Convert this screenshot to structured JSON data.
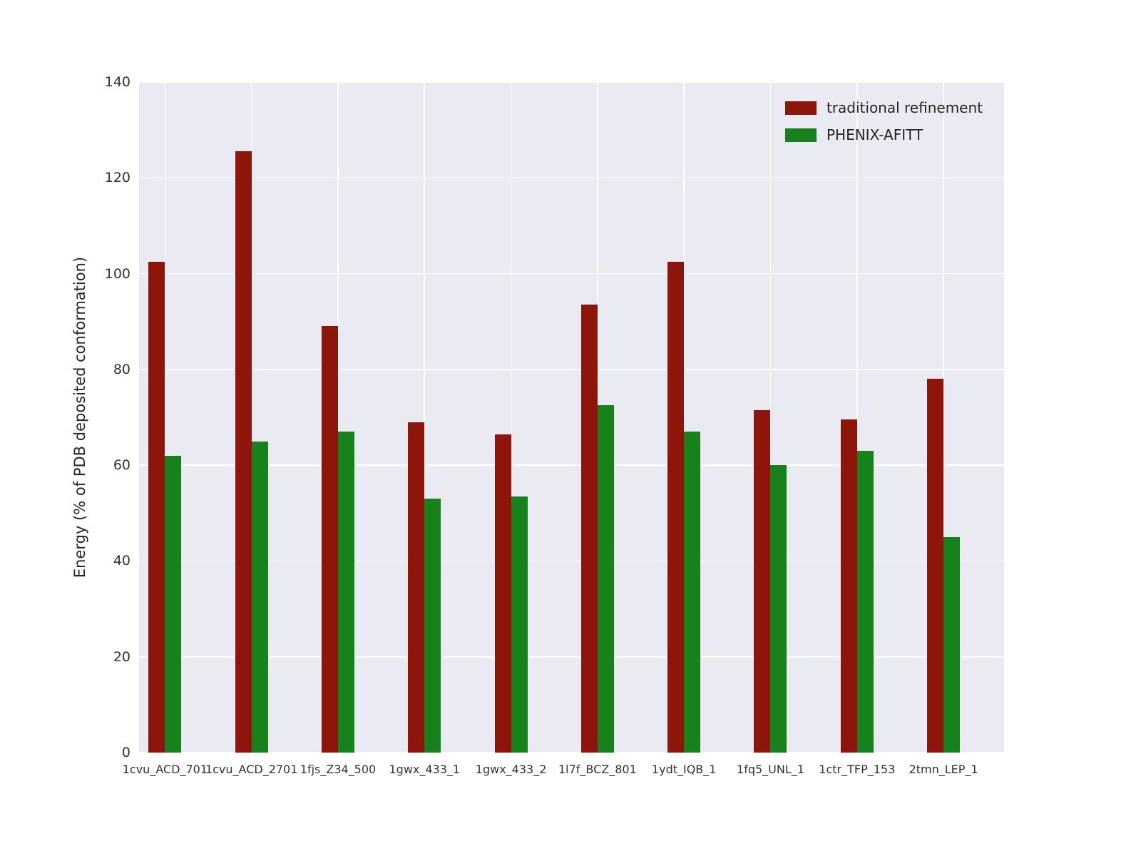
{
  "figure": {
    "plot_bg": "#eaeaf2",
    "grid_color": "#ffffff",
    "text_color": "#333333"
  },
  "chart_data": {
    "type": "bar",
    "title": "",
    "xlabel": "",
    "ylabel": "Energy (% of PDB deposited conformation)",
    "ylim": [
      0,
      140
    ],
    "yticks": [
      0,
      20,
      40,
      60,
      80,
      100,
      120,
      140
    ],
    "grid": true,
    "legend_position": "upper right",
    "categories": [
      "1cvu_ACD_701",
      "1cvu_ACD_2701",
      "1fjs_Z34_500",
      "1gwx_433_1",
      "1gwx_433_2",
      "1l7f_BCZ_801",
      "1ydt_IQB_1",
      "1fq5_UNL_1",
      "1ctr_TFP_153",
      "2tmn_LEP_1"
    ],
    "series": [
      {
        "name": "traditional refinement",
        "color": "#8e1509",
        "values": [
          102.5,
          125.5,
          89.0,
          69.0,
          66.5,
          93.5,
          102.5,
          71.5,
          69.5,
          78.0
        ]
      },
      {
        "name": "PHENIX-AFITT",
        "color": "#17811c",
        "values": [
          62.0,
          65.0,
          67.0,
          53.0,
          53.5,
          72.5,
          67.0,
          60.0,
          63.0,
          45.0
        ]
      }
    ]
  }
}
